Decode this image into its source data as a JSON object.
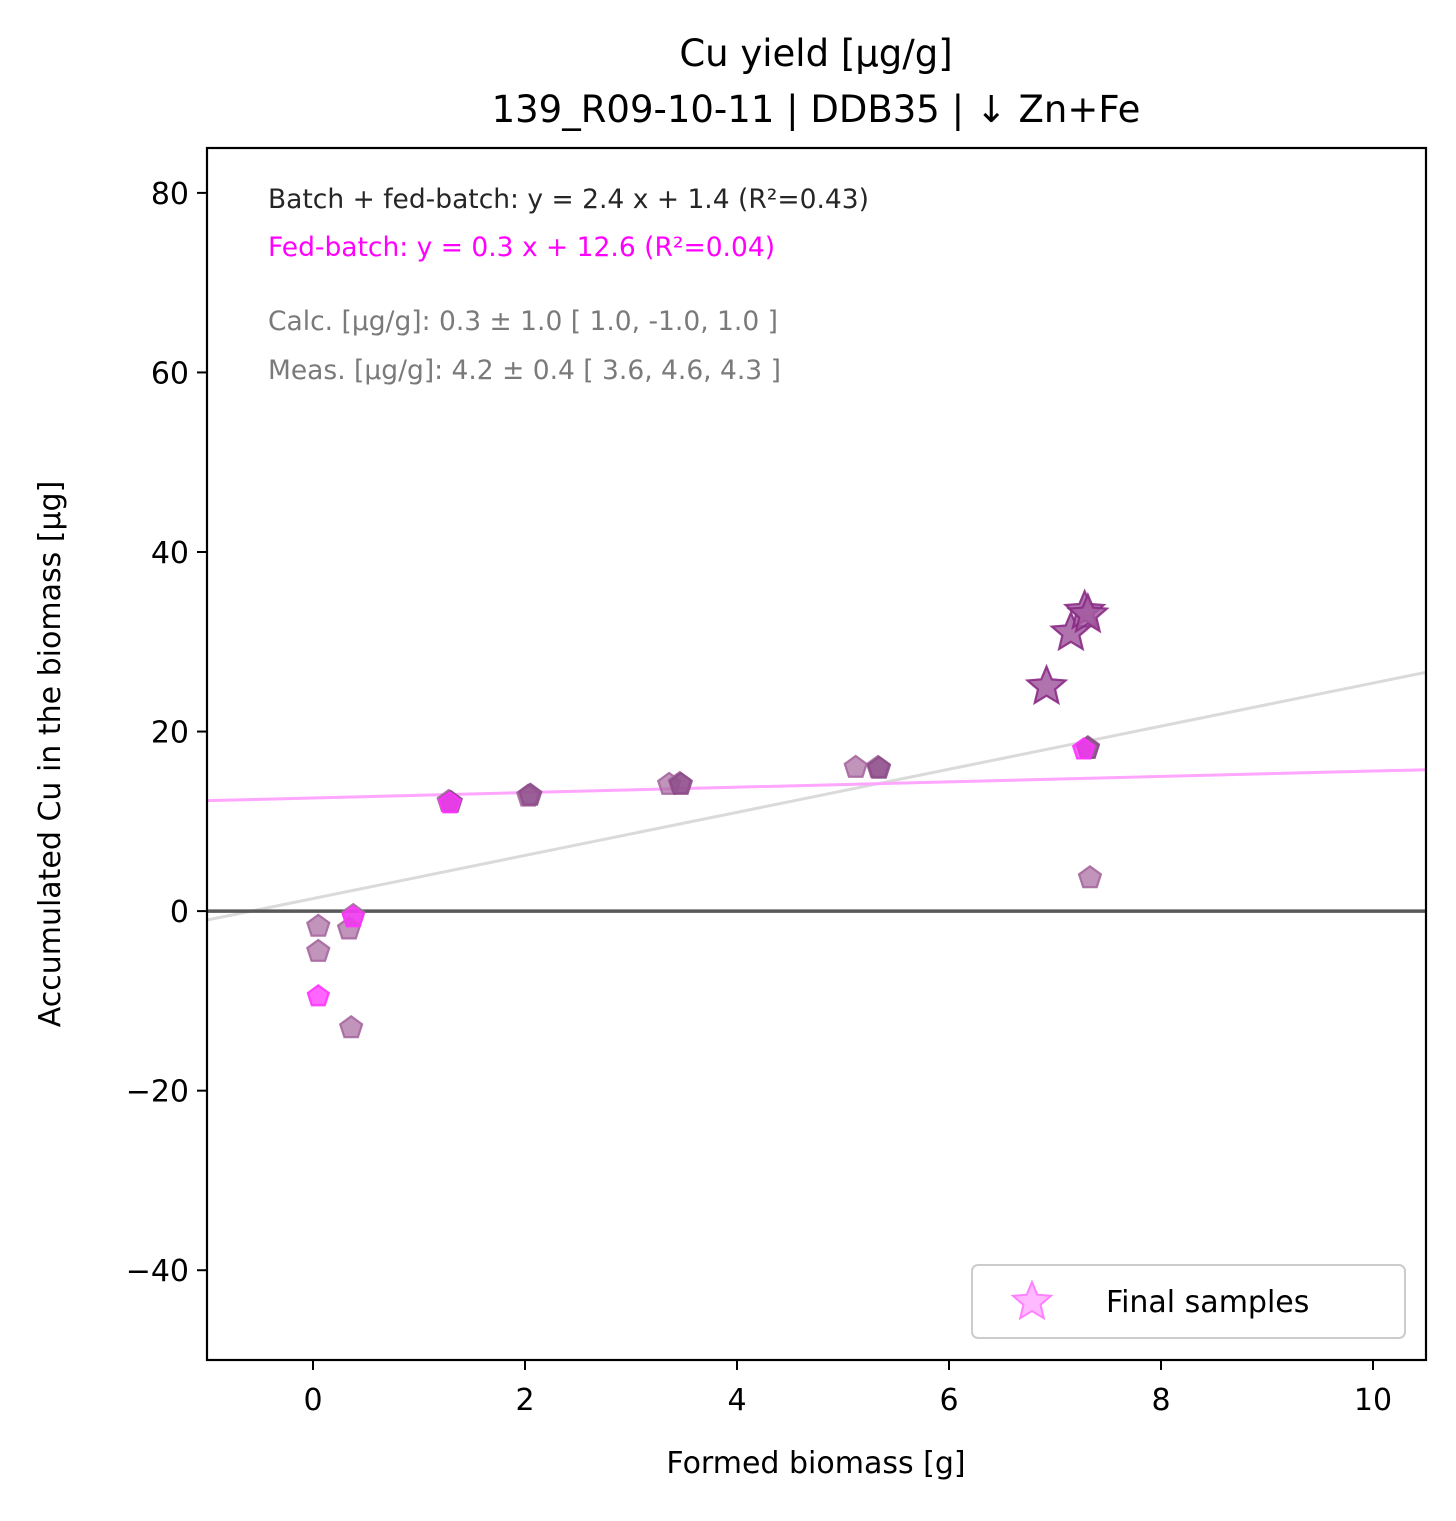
{
  "colors": {
    "background": "#ffffff",
    "axes": "#000000",
    "batch_fedbatch_fit": "#dadada",
    "fedbatch_fit": "#ffa6ff",
    "zero_line": "#595959",
    "annotation_dark": "#262626",
    "annotation_magenta": "#ff00ff",
    "annotation_gray": "#7a7a7a",
    "point_purple": "#a6679e",
    "point_dark": "#8c4d8a",
    "point_magenta": "#ff33ff",
    "star_fill": "#a25a9f",
    "star_edge": "#8a2b86",
    "legend_star_fill": "#ffb3ff",
    "legend_star_edge": "#ff80ff"
  },
  "chart_data": {
    "type": "scatter",
    "title": "Cu yield [µg/g]",
    "subtitle": "139_R09-10-11  |  DDB35  |  ↓ Zn+Fe",
    "xlabel": "Formed biomass [g]",
    "ylabel": "Accumulated Cu in the biomass [µg]",
    "xlim": [
      -1.0,
      10.5
    ],
    "ylim": [
      -50,
      85
    ],
    "xticks": [
      0,
      2,
      4,
      6,
      8,
      10
    ],
    "yticks": [
      80,
      60,
      40,
      20,
      0,
      -20,
      -40
    ],
    "xtick_labels": [
      "0",
      "2",
      "4",
      "6",
      "8",
      "10"
    ],
    "ytick_labels": [
      "80",
      "60",
      "40",
      "20",
      "0",
      "−20",
      "−40"
    ],
    "grid": false,
    "annotations": {
      "batch_fedbatch_eq": "Batch + fed-batch: y = 2.4 x + 1.4 (R²=0.43)",
      "fedbatch_eq": "Fed-batch: y = 0.3 x + 12.6 (R²=0.04)",
      "calc": "Calc. [µg/g]: 0.3 ± 1.0 [ 1.0, -1.0, 1.0 ]",
      "meas": "Meas. [µg/g]: 4.2 ± 0.4 [ 3.6, 4.6, 4.3 ]"
    },
    "lines": [
      {
        "role": "batch_fedbatch_fit",
        "slope": 2.4,
        "intercept": 1.4
      },
      {
        "role": "fedbatch_fit",
        "slope": 0.3,
        "intercept": 12.6
      },
      {
        "role": "zero_line",
        "slope": 0,
        "intercept": 0
      }
    ],
    "series": [
      {
        "role": "purple_samples",
        "marker": "pentagon",
        "x": [
          0.05,
          0.05,
          0.34,
          0.36,
          0.38,
          1.28,
          2.03,
          3.36,
          3.46,
          5.12,
          5.33,
          7.31,
          7.33
        ],
        "y": [
          -1.7,
          -4.5,
          -2.0,
          -13.0,
          -0.5,
          12.2,
          12.8,
          14.1,
          14.2,
          16.0,
          16.0,
          18.2,
          3.7
        ]
      },
      {
        "role": "darker_samples",
        "marker": "pentagon",
        "x": [
          1.3,
          2.05,
          3.47,
          5.34,
          7.31
        ],
        "y": [
          12.1,
          12.9,
          14.1,
          15.9,
          18.1
        ]
      },
      {
        "role": "magenta_samples",
        "marker": "pentagon",
        "x": [
          0.05,
          0.38,
          7.27,
          1.29
        ],
        "y": [
          -9.5,
          -0.7,
          18.0,
          12.0
        ]
      },
      {
        "name": "Final samples",
        "role": "final_samples",
        "marker": "star",
        "x": [
          6.92,
          7.15,
          7.28,
          7.31
        ],
        "y": [
          25.0,
          31.0,
          33.4,
          33.0
        ]
      }
    ],
    "legend": {
      "position": "bottom-right",
      "entries": [
        "Final samples"
      ]
    }
  }
}
